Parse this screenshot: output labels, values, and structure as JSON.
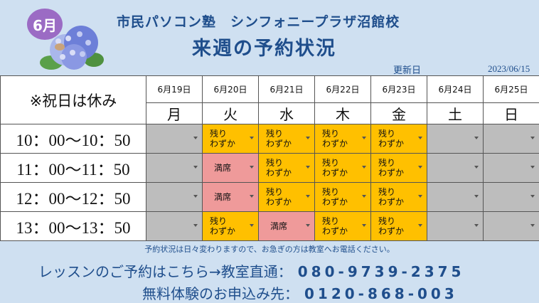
{
  "header": {
    "month_badge": "6月",
    "school": "市民パソコン塾　シンフォニープラザ沼館校",
    "title": "来週の予約状況",
    "updated_label": "更新日",
    "updated_date": "2023/06/15"
  },
  "schedule": {
    "note": "※祝日は休み",
    "days": [
      {
        "date": "6月19日",
        "dow": "月"
      },
      {
        "date": "6月20日",
        "dow": "火"
      },
      {
        "date": "6月21日",
        "dow": "水"
      },
      {
        "date": "6月22日",
        "dow": "木"
      },
      {
        "date": "6月23日",
        "dow": "金"
      },
      {
        "date": "6月24日",
        "dow": "土"
      },
      {
        "date": "6月25日",
        "dow": "日"
      }
    ],
    "status_labels": {
      "few_line1": "残り",
      "few_line2": "わずか",
      "full": "満席"
    },
    "slots": [
      {
        "time": "10：00〜10：50",
        "status": [
          "empty",
          "few",
          "few",
          "few",
          "few",
          "empty",
          "empty"
        ]
      },
      {
        "time": "11：00〜11：50",
        "status": [
          "empty",
          "full",
          "few",
          "few",
          "few",
          "empty",
          "empty"
        ]
      },
      {
        "time": "12：00〜12：50",
        "status": [
          "empty",
          "full",
          "few",
          "few",
          "few",
          "empty",
          "empty"
        ]
      },
      {
        "time": "13：00〜13：50",
        "status": [
          "empty",
          "few",
          "full",
          "few",
          "few",
          "empty",
          "empty"
        ]
      }
    ]
  },
  "footer": {
    "note": "予約状況は日々変わりますので、お急ぎの方は教室へお電話ください。",
    "lesson_label": "レッスンのご予約はこちら→教室直通：",
    "lesson_phone": "080-9739-2375",
    "trial_label": "無料体験のお申込み先：",
    "trial_phone": "0120-868-003"
  },
  "colors": {
    "accent": "#1f4e8c",
    "few": "#ffc000",
    "full": "#ef9a9a",
    "empty": "#bdbdbd",
    "badge": "#9b6bc4"
  }
}
